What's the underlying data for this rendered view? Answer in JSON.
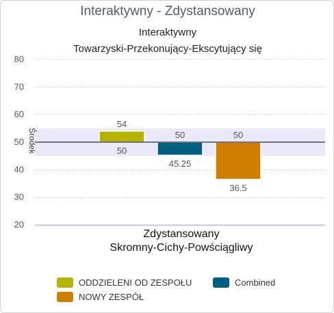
{
  "header": {
    "title": "Interaktywny - Zdystansowany"
  },
  "chart_data": {
    "type": "bar",
    "title": "Interaktywny",
    "subtitle": "Towarzyski-Przekonujący-Ekscytujący się",
    "xlabel": "Zdystansowany",
    "xlabel2": "Skromny-Cichy-Powściągliwy",
    "ylabel": "Środek",
    "ylim": [
      20,
      80
    ],
    "yticks": [
      20,
      30,
      40,
      50,
      60,
      70,
      80
    ],
    "baseline": 50,
    "middle_band": [
      45,
      55
    ],
    "grid": true,
    "legend_position": "bottom",
    "series": [
      {
        "name": "ODDZIELENI OD ZESPOŁU",
        "value": 54,
        "color": "#b5b300",
        "label_top": "54",
        "label_bottom": "50"
      },
      {
        "name": "Combined",
        "value": 45.25,
        "color": "#005f80",
        "label_top": "50",
        "label_bottom": "45.25"
      },
      {
        "name": "NOWY ZESPÓŁ",
        "value": 36.5,
        "color": "#d07e00",
        "label_top": "50",
        "label_bottom": "36.5"
      }
    ]
  }
}
